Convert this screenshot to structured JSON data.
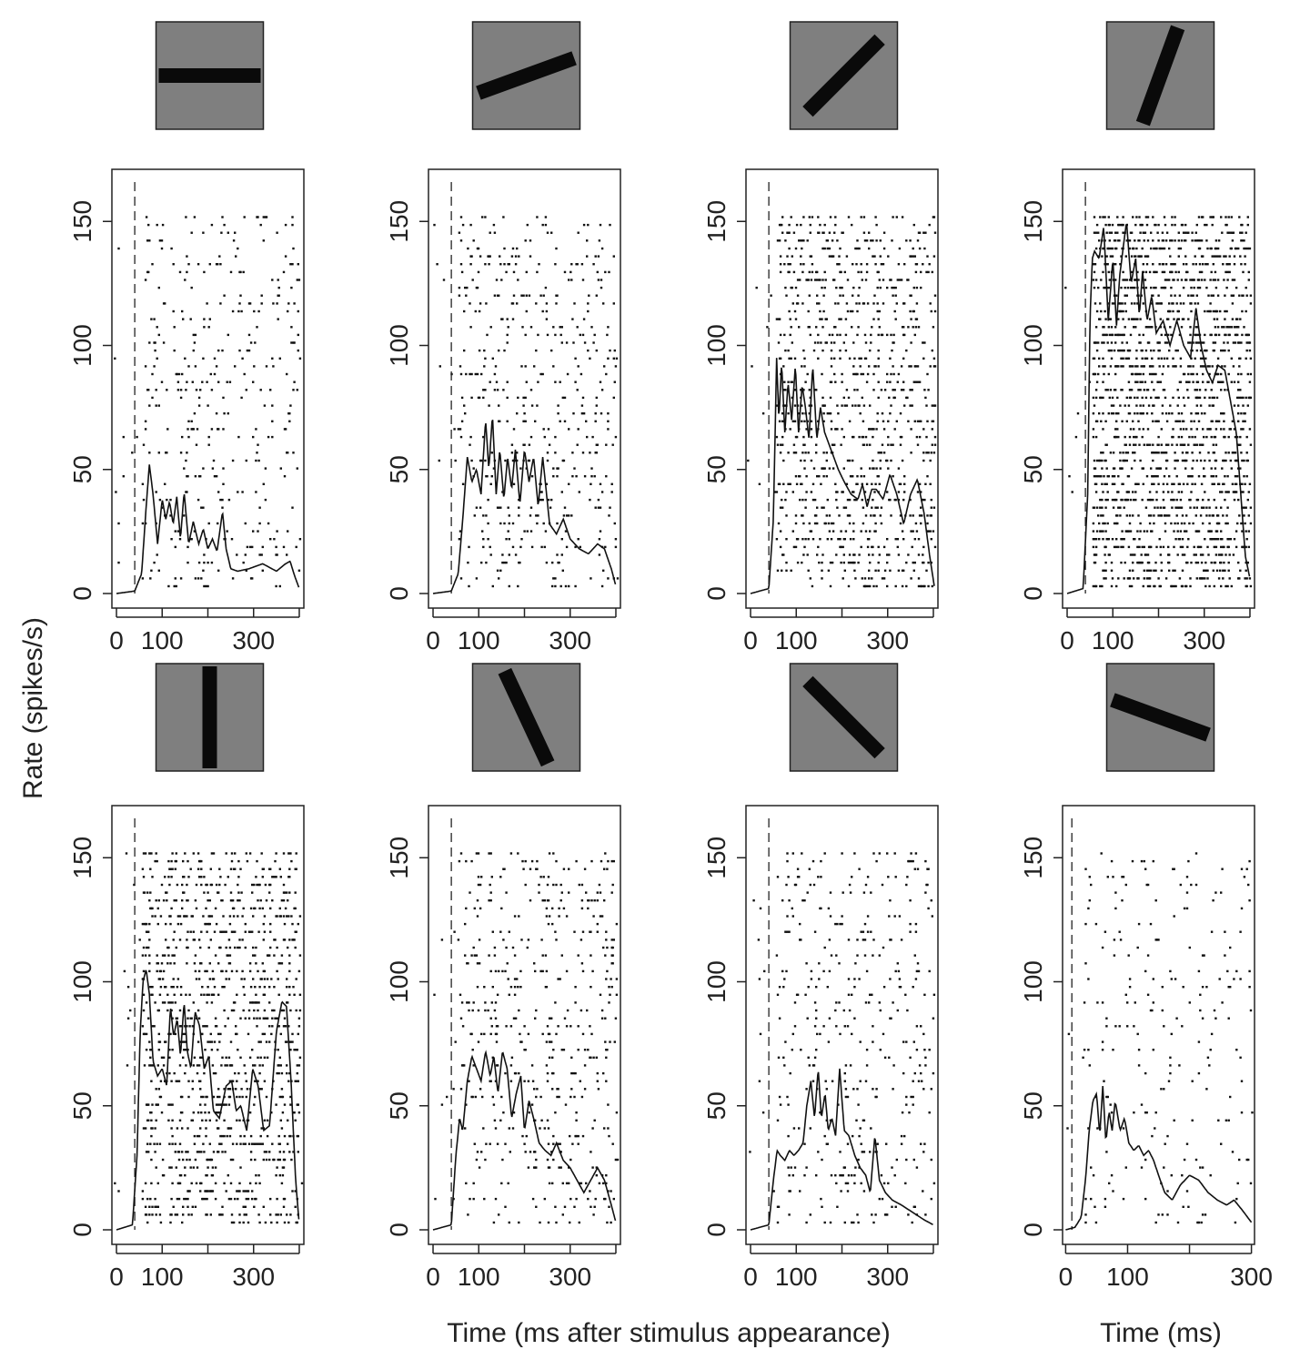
{
  "figure": {
    "ylabel": "Rate (spikes/s)",
    "xlabel_main": "Time (ms after stimulus appearance)",
    "xlabel_last": "Time (ms)"
  },
  "chart_data": [
    {
      "type": "line",
      "panel": "raster-psth",
      "stimulus_orientation_deg": 0,
      "stimulus_onset_ms": 40,
      "ylim": [
        0,
        160
      ],
      "xlim": [
        -10,
        410
      ],
      "yticks": [
        0,
        50,
        100,
        150
      ],
      "xticks": [
        0,
        100,
        300
      ],
      "raster_density": 0.12,
      "psth": {
        "x": [
          0,
          40,
          55,
          65,
          72,
          80,
          90,
          100,
          108,
          116,
          124,
          132,
          140,
          148,
          158,
          168,
          180,
          190,
          200,
          210,
          220,
          232,
          240,
          250,
          265,
          290,
          320,
          350,
          370,
          380,
          390,
          400
        ],
        "y": [
          0,
          1,
          8,
          35,
          52,
          40,
          20,
          38,
          30,
          37,
          28,
          39,
          22,
          41,
          20,
          29,
          20,
          26,
          18,
          22,
          17,
          33,
          18,
          10,
          9,
          10,
          12,
          9,
          12,
          13,
          7,
          2
        ]
      }
    },
    {
      "type": "line",
      "panel": "raster-psth",
      "stimulus_orientation_deg": 20,
      "stimulus_onset_ms": 40,
      "ylim": [
        0,
        160
      ],
      "xlim": [
        -10,
        410
      ],
      "yticks": [
        0,
        50,
        100,
        150
      ],
      "xticks": [
        0,
        100,
        300
      ],
      "raster_density": 0.17,
      "psth": {
        "x": [
          0,
          40,
          55,
          65,
          75,
          85,
          95,
          105,
          115,
          122,
          130,
          138,
          146,
          155,
          163,
          172,
          180,
          190,
          200,
          210,
          220,
          230,
          240,
          255,
          270,
          285,
          300,
          320,
          340,
          360,
          375,
          390,
          400
        ],
        "y": [
          0,
          1,
          8,
          30,
          55,
          45,
          50,
          40,
          70,
          50,
          72,
          40,
          58,
          38,
          55,
          42,
          58,
          36,
          58,
          45,
          55,
          35,
          55,
          28,
          24,
          30,
          22,
          18,
          16,
          20,
          18,
          10,
          3
        ]
      }
    },
    {
      "type": "line",
      "panel": "raster-psth",
      "stimulus_orientation_deg": 45,
      "stimulus_onset_ms": 40,
      "ylim": [
        0,
        160
      ],
      "xlim": [
        -10,
        410
      ],
      "yticks": [
        0,
        50,
        100,
        150
      ],
      "xticks": [
        0,
        100,
        300
      ],
      "raster_density": 0.32,
      "psth": {
        "x": [
          0,
          40,
          50,
          57,
          62,
          68,
          75,
          82,
          90,
          98,
          105,
          113,
          120,
          128,
          136,
          145,
          153,
          162,
          172,
          182,
          192,
          205,
          220,
          235,
          245,
          255,
          265,
          275,
          290,
          305,
          320,
          335,
          350,
          365,
          380,
          392,
          402
        ],
        "y": [
          0,
          2,
          30,
          95,
          70,
          93,
          65,
          85,
          70,
          92,
          65,
          84,
          75,
          62,
          92,
          62,
          75,
          65,
          60,
          55,
          50,
          45,
          40,
          38,
          44,
          35,
          42,
          42,
          38,
          48,
          40,
          28,
          40,
          46,
          32,
          15,
          3
        ]
      }
    },
    {
      "type": "line",
      "panel": "raster-psth",
      "stimulus_orientation_deg": 70,
      "stimulus_onset_ms": 40,
      "ylim": [
        0,
        160
      ],
      "xlim": [
        -10,
        410
      ],
      "yticks": [
        0,
        50,
        100,
        150
      ],
      "xticks": [
        0,
        100,
        300
      ],
      "raster_density": 0.55,
      "psth": {
        "x": [
          0,
          35,
          45,
          50,
          55,
          60,
          70,
          80,
          90,
          100,
          108,
          115,
          123,
          130,
          140,
          150,
          158,
          165,
          175,
          185,
          195,
          210,
          225,
          240,
          255,
          270,
          282,
          293,
          305,
          318,
          330,
          345,
          360,
          370,
          380,
          390,
          400
        ],
        "y": [
          0,
          2,
          40,
          110,
          135,
          138,
          135,
          148,
          110,
          135,
          108,
          128,
          140,
          150,
          125,
          135,
          112,
          130,
          110,
          120,
          105,
          110,
          100,
          110,
          100,
          95,
          115,
          100,
          90,
          85,
          92,
          90,
          75,
          65,
          40,
          15,
          6
        ]
      }
    },
    {
      "type": "line",
      "panel": "raster-psth",
      "stimulus_orientation_deg": 90,
      "stimulus_onset_ms": 40,
      "ylim": [
        0,
        160
      ],
      "xlim": [
        -10,
        410
      ],
      "yticks": [
        0,
        50,
        100,
        150
      ],
      "xticks": [
        0,
        100,
        300
      ],
      "raster_density": 0.38,
      "psth": {
        "x": [
          0,
          35,
          45,
          52,
          58,
          65,
          72,
          80,
          90,
          100,
          110,
          118,
          125,
          133,
          140,
          148,
          155,
          163,
          172,
          182,
          192,
          202,
          212,
          225,
          240,
          252,
          262,
          272,
          285,
          298,
          310,
          322,
          335,
          350,
          362,
          372,
          382,
          392,
          400
        ],
        "y": [
          0,
          2,
          30,
          80,
          100,
          105,
          95,
          68,
          62,
          65,
          58,
          90,
          78,
          85,
          70,
          92,
          72,
          65,
          88,
          82,
          65,
          70,
          48,
          45,
          58,
          60,
          48,
          50,
          40,
          65,
          58,
          40,
          42,
          80,
          92,
          90,
          60,
          20,
          2
        ]
      }
    },
    {
      "type": "line",
      "panel": "raster-psth",
      "stimulus_orientation_deg": 115,
      "stimulus_onset_ms": 40,
      "ylim": [
        0,
        160
      ],
      "xlim": [
        -10,
        410
      ],
      "yticks": [
        0,
        50,
        100,
        150
      ],
      "xticks": [
        0,
        100,
        300
      ],
      "raster_density": 0.17,
      "psth": {
        "x": [
          0,
          40,
          50,
          58,
          65,
          75,
          85,
          95,
          105,
          115,
          125,
          133,
          142,
          152,
          162,
          172,
          182,
          192,
          200,
          210,
          220,
          232,
          245,
          258,
          270,
          285,
          300,
          315,
          330,
          345,
          360,
          375,
          390,
          400
        ],
        "y": [
          0,
          2,
          30,
          45,
          40,
          60,
          70,
          65,
          60,
          72,
          62,
          70,
          55,
          72,
          65,
          45,
          55,
          62,
          40,
          52,
          45,
          35,
          32,
          30,
          35,
          28,
          25,
          20,
          15,
          20,
          25,
          20,
          10,
          3
        ]
      }
    },
    {
      "type": "line",
      "panel": "raster-psth",
      "stimulus_orientation_deg": 135,
      "stimulus_onset_ms": 40,
      "ylim": [
        0,
        160
      ],
      "xlim": [
        -10,
        410
      ],
      "yticks": [
        0,
        50,
        100,
        150
      ],
      "xticks": [
        0,
        100,
        300
      ],
      "raster_density": 0.13,
      "psth": {
        "x": [
          0,
          40,
          50,
          58,
          65,
          75,
          85,
          95,
          105,
          115,
          123,
          132,
          140,
          148,
          155,
          163,
          170,
          178,
          186,
          195,
          205,
          215,
          228,
          240,
          252,
          262,
          272,
          282,
          295,
          310,
          330,
          355,
          380,
          400
        ],
        "y": [
          0,
          2,
          20,
          32,
          30,
          28,
          32,
          30,
          32,
          35,
          50,
          60,
          45,
          65,
          45,
          55,
          40,
          45,
          38,
          65,
          40,
          38,
          30,
          25,
          22,
          15,
          38,
          20,
          15,
          12,
          10,
          7,
          4,
          2
        ]
      }
    },
    {
      "type": "line",
      "panel": "raster-psth",
      "stimulus_orientation_deg": 160,
      "stimulus_onset_ms": 10,
      "ylim": [
        0,
        160
      ],
      "xlim": [
        -5,
        305
      ],
      "yticks": [
        0,
        50,
        100,
        150
      ],
      "xticks": [
        0,
        100,
        300
      ],
      "raster_density": 0.1,
      "psth": {
        "x": [
          0,
          15,
          25,
          32,
          38,
          44,
          50,
          55,
          60,
          65,
          70,
          75,
          80,
          88,
          95,
          102,
          110,
          118,
          126,
          134,
          142,
          150,
          160,
          172,
          185,
          200,
          215,
          230,
          245,
          260,
          272,
          285,
          300
        ],
        "y": [
          0,
          1,
          5,
          20,
          40,
          52,
          55,
          38,
          58,
          35,
          48,
          40,
          52,
          40,
          45,
          35,
          32,
          34,
          30,
          32,
          28,
          22,
          15,
          12,
          18,
          22,
          20,
          15,
          12,
          10,
          12,
          8,
          3
        ]
      }
    }
  ]
}
